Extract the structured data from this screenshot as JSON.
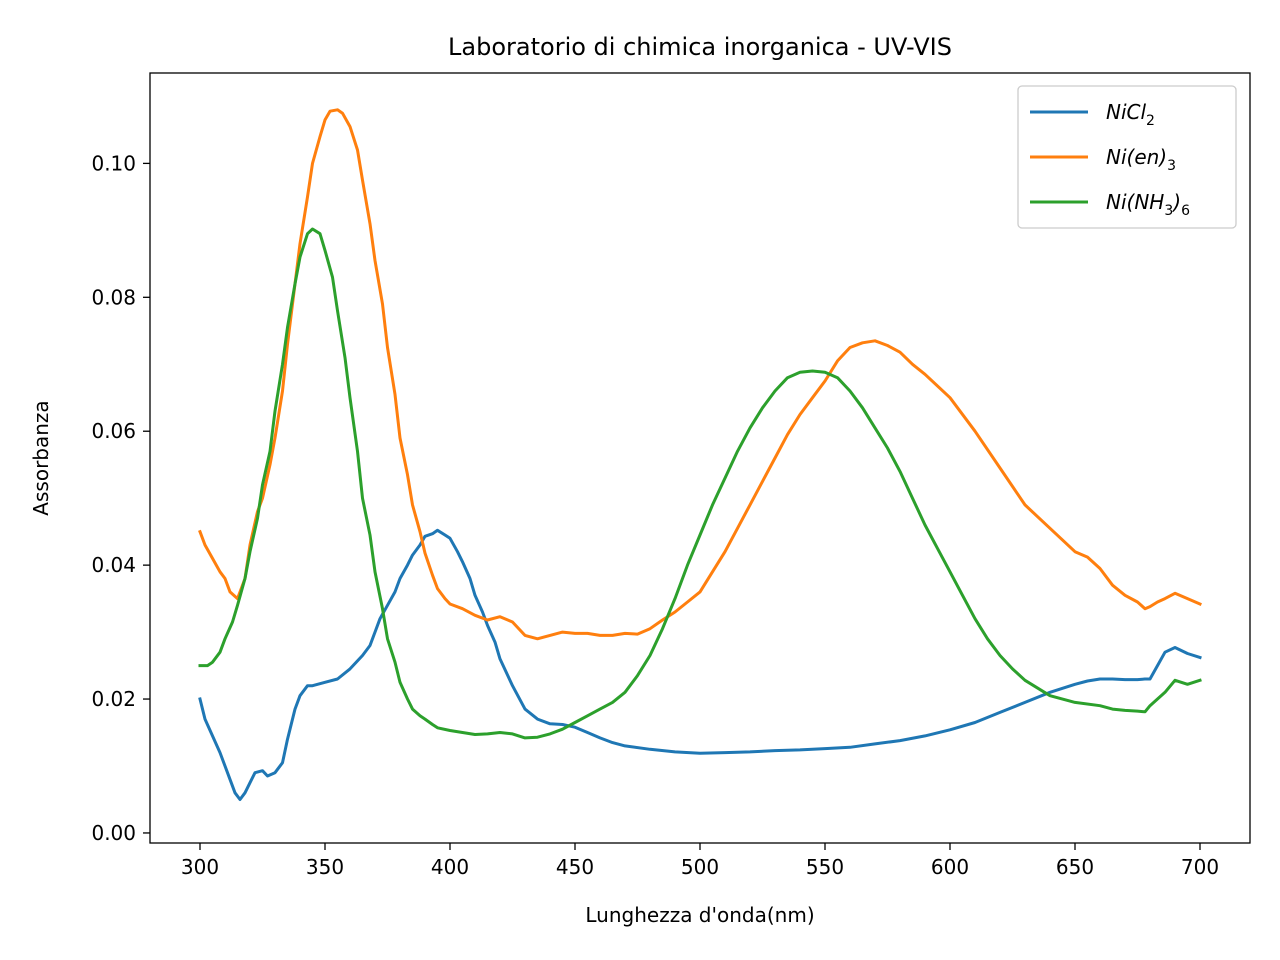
{
  "chart_data": {
    "type": "line",
    "title": "Laboratorio di chimica inorganica - UV-VIS",
    "xlabel": "Lunghezza d'onda(nm)",
    "ylabel": "Assorbanza",
    "xlim": [
      280,
      720
    ],
    "ylim": [
      -0.0015,
      0.1135
    ],
    "xticks": [
      300,
      350,
      400,
      450,
      500,
      550,
      600,
      650,
      700
    ],
    "xtick_labels": [
      "300",
      "350",
      "400",
      "450",
      "500",
      "550",
      "600",
      "650",
      "700"
    ],
    "yticks": [
      0.0,
      0.02,
      0.04,
      0.06,
      0.08,
      0.1
    ],
    "ytick_labels": [
      "0.00",
      "0.02",
      "0.04",
      "0.06",
      "0.08",
      "0.10"
    ],
    "grid": false,
    "legend_position": "top-right",
    "series": [
      {
        "name": "NiCl2",
        "legend": {
          "base": "NiCl",
          "sub": "2",
          "tail": ""
        },
        "color": "#1f77b4",
        "x": [
          300,
          302,
          305,
          308,
          311,
          314,
          316,
          318,
          320,
          322,
          325,
          327,
          330,
          333,
          335,
          338,
          340,
          343,
          345,
          350,
          355,
          360,
          365,
          368,
          370,
          372,
          375,
          378,
          380,
          383,
          385,
          388,
          390,
          393,
          395,
          398,
          400,
          403,
          405,
          408,
          410,
          413,
          415,
          418,
          420,
          425,
          430,
          435,
          440,
          445,
          450,
          455,
          460,
          465,
          470,
          480,
          490,
          500,
          510,
          520,
          530,
          540,
          550,
          560,
          570,
          580,
          590,
          600,
          610,
          620,
          630,
          640,
          650,
          655,
          660,
          665,
          670,
          675,
          678,
          680,
          683,
          686,
          690,
          695,
          700
        ],
        "y": [
          0.02,
          0.017,
          0.0145,
          0.012,
          0.009,
          0.006,
          0.005,
          0.006,
          0.0075,
          0.009,
          0.0093,
          0.0085,
          0.009,
          0.0105,
          0.014,
          0.0185,
          0.0205,
          0.022,
          0.022,
          0.0225,
          0.023,
          0.0245,
          0.0265,
          0.028,
          0.03,
          0.032,
          0.034,
          0.036,
          0.038,
          0.04,
          0.0415,
          0.043,
          0.0443,
          0.0447,
          0.0452,
          0.0445,
          0.044,
          0.042,
          0.0405,
          0.038,
          0.0355,
          0.033,
          0.031,
          0.0285,
          0.026,
          0.022,
          0.0185,
          0.017,
          0.0163,
          0.0162,
          0.0158,
          0.015,
          0.0142,
          0.0135,
          0.013,
          0.0125,
          0.0121,
          0.0119,
          0.012,
          0.0121,
          0.0123,
          0.0124,
          0.0126,
          0.0128,
          0.0133,
          0.0138,
          0.0145,
          0.0154,
          0.0165,
          0.018,
          0.0195,
          0.021,
          0.0222,
          0.0227,
          0.023,
          0.023,
          0.0229,
          0.0229,
          0.023,
          0.023,
          0.025,
          0.027,
          0.0277,
          0.0268,
          0.0262
        ]
      },
      {
        "name": "Ni(en)3",
        "legend": {
          "base": "Ni(en)",
          "sub": "3",
          "tail": ""
        },
        "color": "#ff7f0e",
        "x": [
          300,
          302,
          305,
          308,
          310,
          312,
          315,
          318,
          320,
          323,
          325,
          328,
          330,
          333,
          335,
          338,
          340,
          343,
          345,
          348,
          350,
          352,
          355,
          357,
          360,
          363,
          365,
          368,
          370,
          373,
          375,
          378,
          380,
          383,
          385,
          388,
          390,
          393,
          395,
          398,
          400,
          405,
          410,
          415,
          420,
          425,
          430,
          435,
          440,
          445,
          450,
          455,
          460,
          465,
          470,
          475,
          480,
          485,
          490,
          495,
          500,
          505,
          510,
          515,
          520,
          525,
          530,
          535,
          540,
          545,
          550,
          555,
          560,
          565,
          570,
          575,
          580,
          585,
          590,
          600,
          610,
          620,
          630,
          640,
          650,
          655,
          660,
          665,
          670,
          675,
          678,
          680,
          683,
          686,
          690,
          695,
          700
        ],
        "y": [
          0.045,
          0.043,
          0.041,
          0.039,
          0.038,
          0.036,
          0.035,
          0.038,
          0.043,
          0.048,
          0.05,
          0.055,
          0.059,
          0.066,
          0.073,
          0.082,
          0.088,
          0.095,
          0.1,
          0.104,
          0.1065,
          0.1078,
          0.108,
          0.1075,
          0.1055,
          0.102,
          0.0975,
          0.091,
          0.0855,
          0.079,
          0.0725,
          0.0655,
          0.059,
          0.0535,
          0.049,
          0.045,
          0.0418,
          0.0385,
          0.0365,
          0.035,
          0.0342,
          0.0335,
          0.0325,
          0.0318,
          0.0323,
          0.0315,
          0.0295,
          0.029,
          0.0295,
          0.03,
          0.0298,
          0.0298,
          0.0295,
          0.0295,
          0.0298,
          0.0297,
          0.0305,
          0.0318,
          0.033,
          0.0345,
          0.036,
          0.039,
          0.042,
          0.0455,
          0.049,
          0.0525,
          0.056,
          0.0595,
          0.0625,
          0.065,
          0.0675,
          0.0705,
          0.0725,
          0.0732,
          0.0735,
          0.0728,
          0.0718,
          0.07,
          0.0685,
          0.065,
          0.06,
          0.0545,
          0.049,
          0.0455,
          0.042,
          0.0412,
          0.0395,
          0.037,
          0.0355,
          0.0345,
          0.0335,
          0.0338,
          0.0345,
          0.035,
          0.0358,
          0.035,
          0.0342
        ]
      },
      {
        "name": "Ni(NH3)6",
        "legend": {
          "base": "Ni(NH",
          "sub": "3",
          "tail": ")",
          "sub2": "6"
        },
        "color": "#2ca02c",
        "x": [
          300,
          303,
          305,
          308,
          310,
          313,
          315,
          318,
          320,
          323,
          325,
          328,
          330,
          333,
          335,
          338,
          340,
          343,
          345,
          348,
          350,
          353,
          355,
          358,
          360,
          363,
          365,
          368,
          370,
          373,
          375,
          378,
          380,
          383,
          385,
          388,
          390,
          393,
          395,
          400,
          405,
          410,
          415,
          420,
          425,
          430,
          435,
          440,
          445,
          450,
          455,
          460,
          465,
          470,
          475,
          480,
          485,
          490,
          495,
          500,
          505,
          510,
          515,
          520,
          525,
          530,
          535,
          540,
          545,
          550,
          555,
          560,
          565,
          570,
          575,
          580,
          585,
          590,
          595,
          600,
          605,
          610,
          615,
          620,
          625,
          630,
          640,
          650,
          660,
          665,
          670,
          675,
          678,
          680,
          683,
          686,
          690,
          695,
          700
        ],
        "y": [
          0.025,
          0.025,
          0.0255,
          0.027,
          0.029,
          0.0315,
          0.034,
          0.038,
          0.042,
          0.047,
          0.052,
          0.057,
          0.063,
          0.07,
          0.0755,
          0.082,
          0.086,
          0.0895,
          0.0902,
          0.0895,
          0.087,
          0.083,
          0.078,
          0.071,
          0.065,
          0.057,
          0.05,
          0.0445,
          0.039,
          0.0335,
          0.029,
          0.0255,
          0.0225,
          0.02,
          0.0185,
          0.0175,
          0.017,
          0.0162,
          0.0157,
          0.0153,
          0.015,
          0.0147,
          0.0148,
          0.015,
          0.0148,
          0.0142,
          0.0143,
          0.0148,
          0.0155,
          0.0165,
          0.0175,
          0.0185,
          0.0195,
          0.021,
          0.0235,
          0.0265,
          0.0305,
          0.035,
          0.04,
          0.0445,
          0.049,
          0.053,
          0.057,
          0.0605,
          0.0635,
          0.066,
          0.068,
          0.0688,
          0.069,
          0.0688,
          0.068,
          0.066,
          0.0635,
          0.0605,
          0.0575,
          0.054,
          0.05,
          0.046,
          0.0425,
          0.039,
          0.0355,
          0.032,
          0.029,
          0.0265,
          0.0245,
          0.0228,
          0.0205,
          0.0195,
          0.019,
          0.0185,
          0.0183,
          0.0182,
          0.0181,
          0.019,
          0.02,
          0.021,
          0.0228,
          0.0222,
          0.0228
        ]
      }
    ]
  }
}
